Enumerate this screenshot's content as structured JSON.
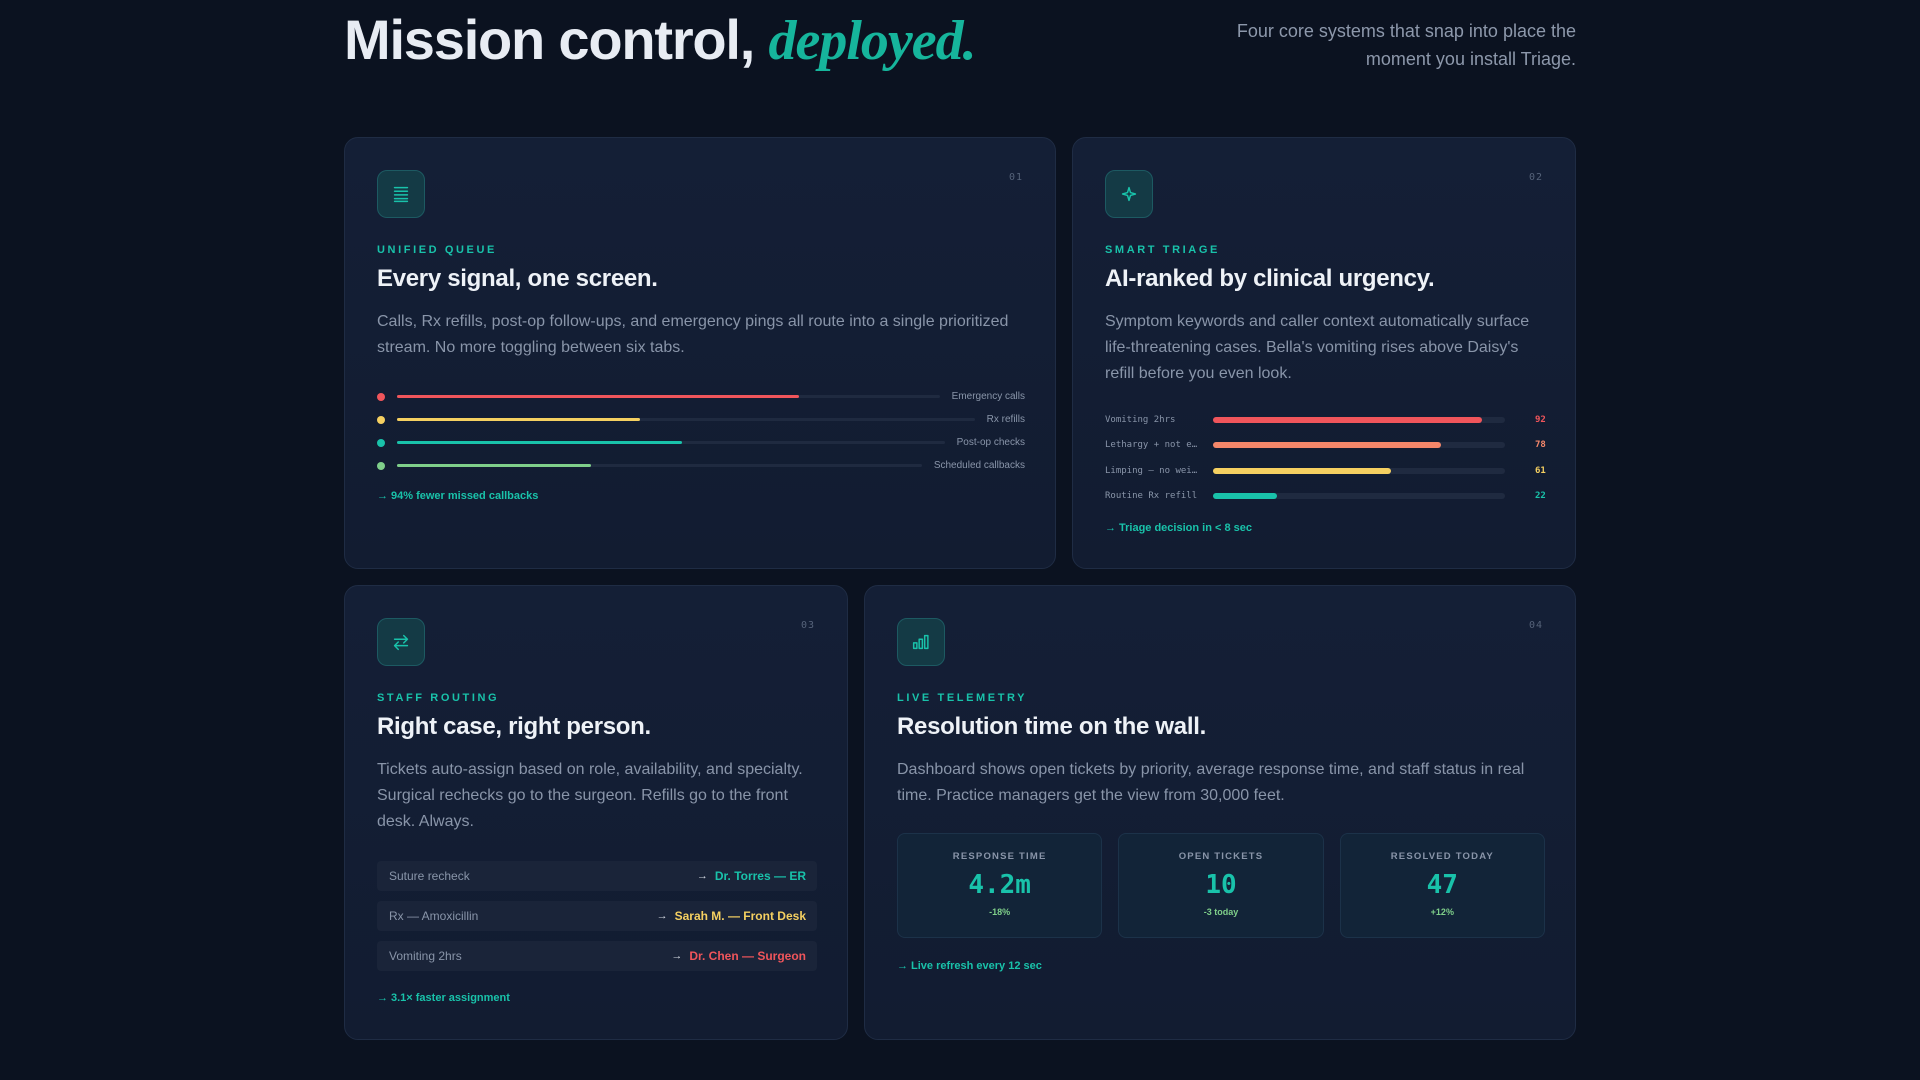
{
  "hero": {
    "title_main": "Mission control,",
    "title_accent": "deployed.",
    "subtitle": "Four core systems that snap into place the moment you install Triage."
  },
  "colors": {
    "accent": "#19c2aa",
    "red": "#f0555b",
    "orange": "#f4876a",
    "yellow": "#f5d061",
    "green": "#7fcf8a",
    "background": "#0b1220",
    "card": "#141f36"
  },
  "cards": [
    {
      "number": "01",
      "icon": "list-icon",
      "eyebrow": "UNIFIED QUEUE",
      "title": "Every signal, one screen.",
      "description": "Calls, Rx refills, post-op follow-ups, and emergency pings all route into a single prioritized stream. No more toggling between six tabs.",
      "queue": [
        {
          "label": "Emergency calls",
          "level": 0.74,
          "color": "#f0555b"
        },
        {
          "label": "Rx refills",
          "level": 0.42,
          "color": "#f5d061"
        },
        {
          "label": "Post-op checks",
          "level": 0.52,
          "color": "#19c2aa"
        },
        {
          "label": "Scheduled callbacks",
          "level": 0.37,
          "color": "#7fcf8a"
        }
      ],
      "footnote": "94% fewer missed callbacks"
    },
    {
      "number": "02",
      "icon": "sparkle-icon",
      "eyebrow": "SMART TRIAGE",
      "title": "AI-ranked by clinical urgency.",
      "description": "Symptom keywords and caller context automatically surface life-threatening cases. Bella's vomiting rises above Daisy's refill before you even look.",
      "ranks": [
        {
          "label": "Vomiting 2hrs",
          "score": "92",
          "level": 0.92,
          "color": "#f0555b"
        },
        {
          "label": "Lethargy + not eating",
          "score": "78",
          "level": 0.78,
          "color": "#f4876a"
        },
        {
          "label": "Limping — no weight",
          "score": "61",
          "level": 0.61,
          "color": "#f5d061"
        },
        {
          "label": "Routine Rx refill",
          "score": "22",
          "level": 0.22,
          "color": "#19c2aa"
        }
      ],
      "footnote": "Triage decision in < 8 sec"
    },
    {
      "number": "03",
      "icon": "swap-arrows-icon",
      "eyebrow": "STAFF ROUTING",
      "title": "Right case, right person.",
      "description": "Tickets auto-assign based on role, availability, and specialty. Surgical rechecks go to the surgeon. Refills go to the front desk. Always.",
      "routes": [
        {
          "case": "Suture recheck",
          "assignee": "Dr. Torres — ER",
          "color": "#19c2aa"
        },
        {
          "case": "Rx — Amoxicillin",
          "assignee": "Sarah M. — Front Desk",
          "color": "#f5d061"
        },
        {
          "case": "Vomiting 2hrs",
          "assignee": "Dr. Chen — Surgeon",
          "color": "#f0555b"
        }
      ],
      "footnote": "3.1× faster assignment"
    },
    {
      "number": "04",
      "icon": "bar-chart-icon",
      "eyebrow": "LIVE TELEMETRY",
      "title": "Resolution time on the wall.",
      "description": "Dashboard shows open tickets by priority, average response time, and staff status in real time. Practice managers get the view from 30,000 feet.",
      "stats": [
        {
          "label": "RESPONSE TIME",
          "value": "4.2m",
          "delta": "-18%"
        },
        {
          "label": "OPEN TICKETS",
          "value": "10",
          "delta": "-3 today"
        },
        {
          "label": "RESOLVED TODAY",
          "value": "47",
          "delta": "+12%"
        }
      ],
      "footnote": "Live refresh every 12 sec"
    }
  ]
}
